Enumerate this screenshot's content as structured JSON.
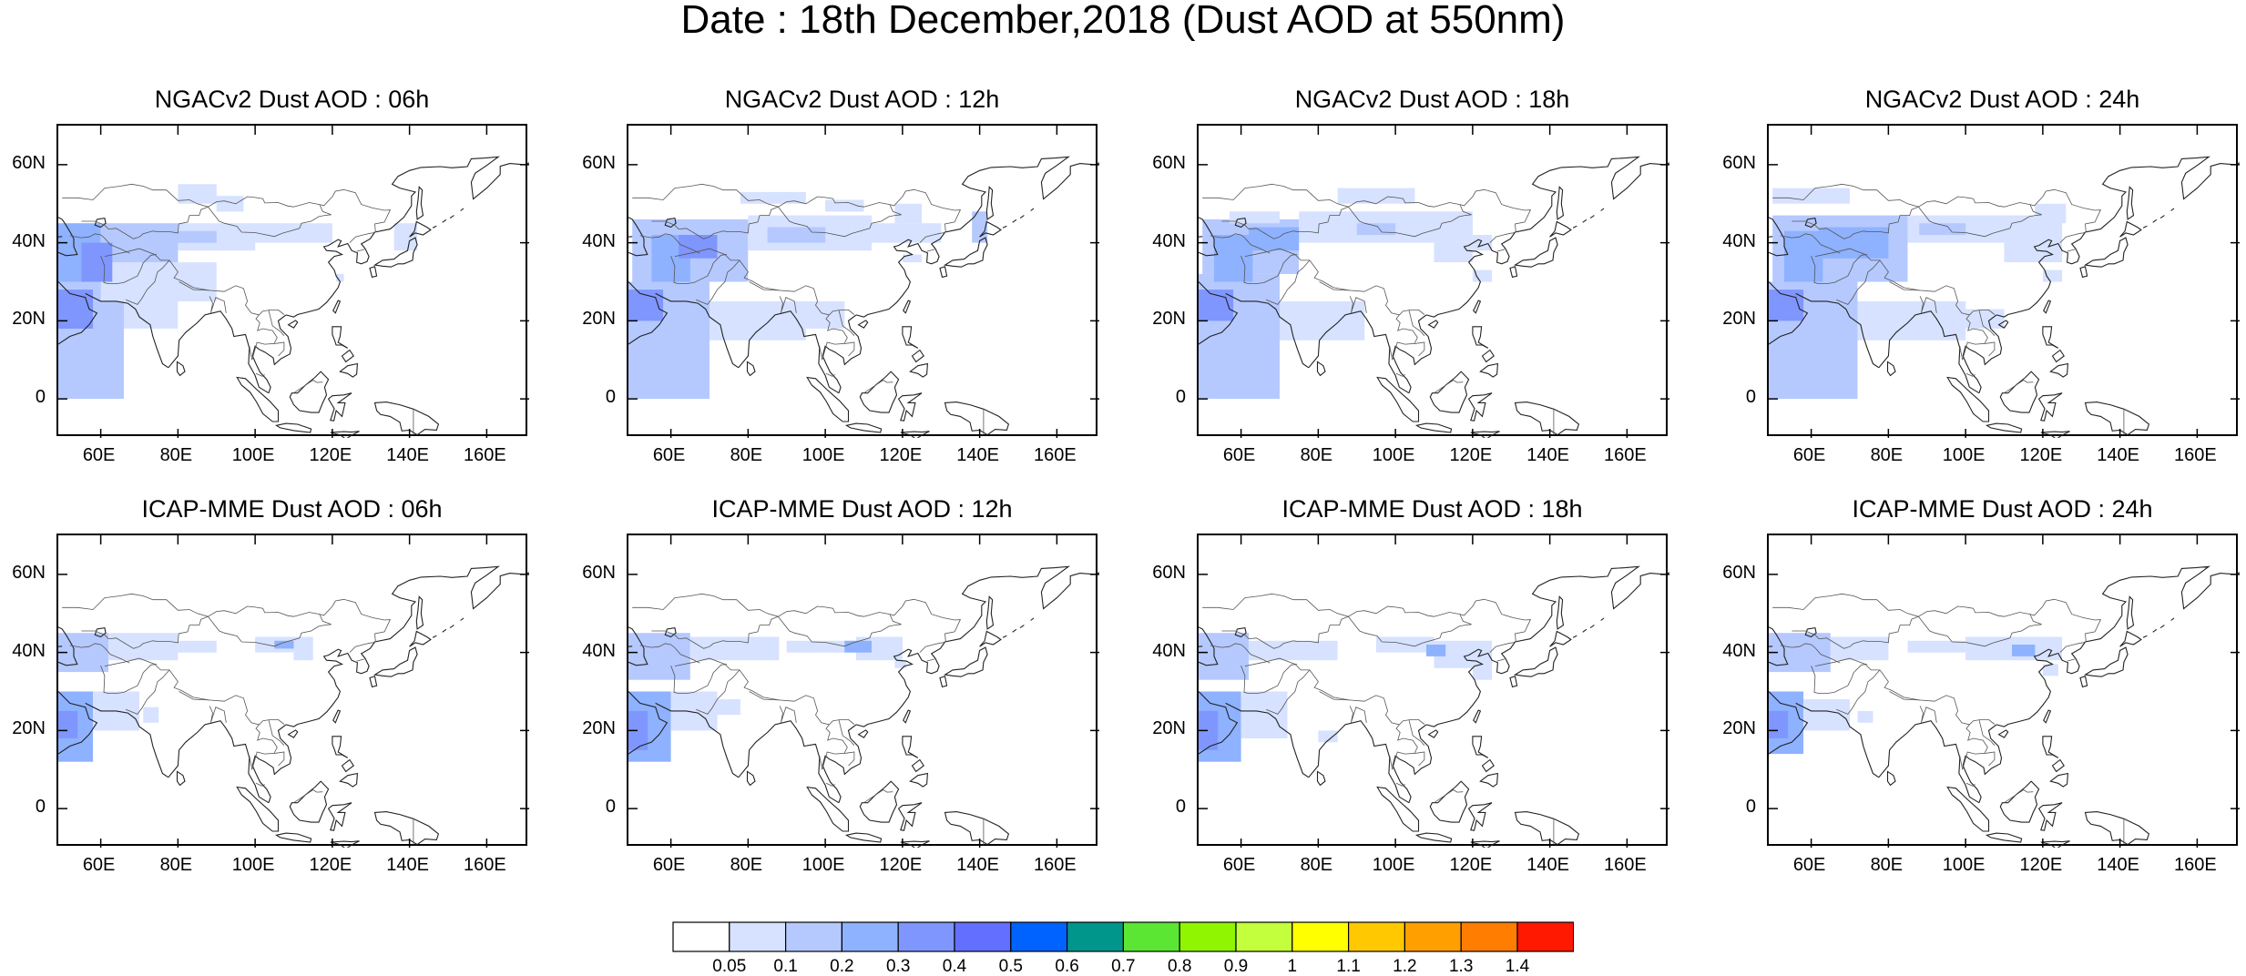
{
  "title": "Date : 18th December,2018 (Dust AOD at 550nm)",
  "axes": {
    "lat_labels": [
      "60N",
      "40N",
      "20N",
      "0"
    ],
    "lat_values": [
      60,
      40,
      20,
      0
    ],
    "lon_labels": [
      "60E",
      "80E",
      "100E",
      "120E",
      "140E",
      "160E"
    ],
    "lon_values": [
      60,
      80,
      100,
      120,
      140,
      160
    ],
    "lon_range": [
      49,
      171
    ],
    "lat_range": [
      -10,
      70
    ]
  },
  "panels": [
    {
      "title": "NGACv2 Dust AOD : 06h"
    },
    {
      "title": "NGACv2 Dust AOD : 12h"
    },
    {
      "title": "NGACv2 Dust AOD : 18h"
    },
    {
      "title": "NGACv2 Dust AOD : 24h"
    },
    {
      "title": "ICAP-MME Dust AOD : 06h"
    },
    {
      "title": "ICAP-MME Dust AOD : 12h"
    },
    {
      "title": "ICAP-MME Dust AOD : 18h"
    },
    {
      "title": "ICAP-MME Dust AOD : 24h"
    }
  ],
  "colorbar": {
    "labels": [
      "0.05",
      "0.1",
      "0.2",
      "0.3",
      "0.4",
      "0.5",
      "0.6",
      "0.7",
      "0.8",
      "0.9",
      "1",
      "1.1",
      "1.2",
      "1.3",
      "1.4"
    ],
    "colors": [
      "#ffffff",
      "#d6e2ff",
      "#b5c9ff",
      "#8eb2ff",
      "#7f96ff",
      "#6370ff",
      "#0063ff",
      "#00968c",
      "#5ae632",
      "#8ff500",
      "#c3ff3c",
      "#ffff00",
      "#ffc800",
      "#ffa000",
      "#ff7d00",
      "#ff1900"
    ]
  }
}
